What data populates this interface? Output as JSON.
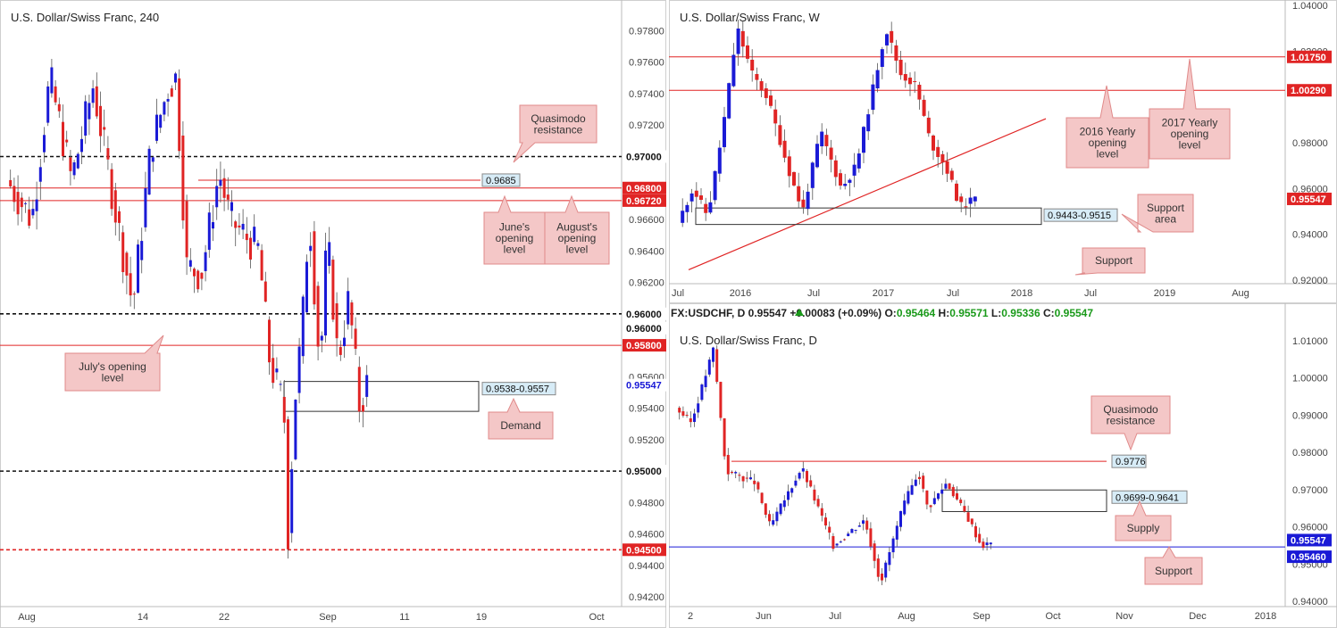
{
  "colors": {
    "up": "#1a1ad6",
    "down": "#e02424",
    "resistance": "#e02424",
    "support_blue": "#1a1ad6",
    "callout_bg": "#f4c7c7",
    "callout_border": "#e08a8a",
    "tag_bg": "#d7ecf7",
    "axis_text": "#444444"
  },
  "panels": [
    {
      "id": "left",
      "title": "U.S. Dollar/Swiss Franc, 240",
      "ylim": [
        0.4,
        0.9795
      ],
      "yticks": [
        "0.97800",
        "0.97600",
        "0.97400",
        "0.97200",
        "0.96600",
        "0.96400",
        "0.96200",
        "0.95600",
        "0.95400",
        "0.95200",
        "0.94800",
        "0.94600",
        "0.94400",
        "0.94200"
      ],
      "ytick_values": [
        0.978,
        0.976,
        0.974,
        0.972,
        0.966,
        0.964,
        0.962,
        0.956,
        0.954,
        0.952,
        0.948,
        0.946,
        0.944,
        0.942
      ],
      "xticks": [
        "Aug",
        "14",
        "22",
        "Sep",
        "11",
        "19",
        "Oct"
      ],
      "levels": [
        {
          "value": 0.97,
          "label": "0.97000",
          "style": "dash-black",
          "tag": "white"
        },
        {
          "value": 0.968,
          "label": "0.96800",
          "style": "solid-red",
          "tag": "red"
        },
        {
          "value": 0.9672,
          "label": "0.96720",
          "style": "solid-red",
          "tag": "red"
        },
        {
          "value": 0.96,
          "label": "0.96000",
          "style": "dash-black",
          "tag": "white"
        },
        {
          "value": 0.96,
          "label": "0.96000",
          "style": "none",
          "tag": "white"
        },
        {
          "value": 0.958,
          "label": "0.95800",
          "style": "solid-red",
          "tag": "red"
        },
        {
          "value": 0.95547,
          "label": "0.95547",
          "style": "none",
          "tag": "blue-text"
        },
        {
          "value": 0.95,
          "label": "0.95000",
          "style": "dash-black",
          "tag": "white"
        },
        {
          "value": 0.945,
          "label": "0.94500",
          "style": "dash-red",
          "tag": "red"
        }
      ],
      "zones": [
        {
          "label": "0.9538-0.9557",
          "top": 0.9557,
          "bottom": 0.9538
        }
      ],
      "short_lines": [
        {
          "label": "0.9685",
          "value": 0.9685
        }
      ],
      "callouts": [
        "Quasimodo resistance",
        "June's opening level",
        "August's opening level",
        "July's opening level",
        "Demand"
      ]
    },
    {
      "id": "weekly",
      "title": "U.S. Dollar/Swiss Franc, W",
      "yticks": [
        "1.04000",
        "1.02000",
        "0.98000",
        "0.96000",
        "0.94000",
        "0.92000"
      ],
      "ytick_values": [
        1.04,
        1.02,
        0.98,
        0.96,
        0.94,
        0.92
      ],
      "xticks": [
        "Jul",
        "2016",
        "Jul",
        "2017",
        "Jul",
        "2018",
        "Jul",
        "2019",
        "Aug"
      ],
      "levels": [
        {
          "value": 1.0175,
          "label": "1.01750",
          "style": "solid-red",
          "tag": "red"
        },
        {
          "value": 1.0029,
          "label": "1.00290",
          "style": "solid-red",
          "tag": "red"
        },
        {
          "value": 0.95547,
          "label": "0.95547",
          "style": "none",
          "tag": "red"
        }
      ],
      "zones": [
        {
          "label": "0.9443-0.9515",
          "top": 0.9515,
          "bottom": 0.9443
        }
      ],
      "callouts": [
        "2016 Yearly opening level",
        "2017 Yearly opening level",
        "Support area",
        "Support"
      ]
    },
    {
      "id": "daily",
      "title": "U.S. Dollar/Swiss Franc, D",
      "info": {
        "symbol": "FX:USDCHF, D",
        "price": "0.95547",
        "change": "+0.00083 (+0.09%)",
        "o_label": "O:",
        "o": "0.95464",
        "h_label": "H:",
        "h": "0.95571",
        "l_label": "L:",
        "l": "0.95336",
        "c_label": "C:",
        "c": "0.95547"
      },
      "yticks": [
        "1.01000",
        "1.00000",
        "0.99000",
        "0.98000",
        "0.97000",
        "0.96000",
        "0.95000",
        "0.94000"
      ],
      "ytick_values": [
        1.01,
        1.0,
        0.99,
        0.98,
        0.97,
        0.96,
        0.95,
        0.94
      ],
      "xticks": [
        "2",
        "Jun",
        "Jul",
        "Aug",
        "Sep",
        "Oct",
        "Nov",
        "Dec",
        "2018"
      ],
      "levels": [
        {
          "value": 0.9776,
          "label": "0.9776",
          "style": "solid-red",
          "tag": "none"
        },
        {
          "value": 0.95547,
          "label": "0.95547",
          "style": "none",
          "tag": "blue"
        },
        {
          "value": 0.9546,
          "label": "0.95460",
          "style": "solid-blue",
          "tag": "blue"
        }
      ],
      "zones": [
        {
          "label": "0.9699-0.9641",
          "top": 0.9699,
          "bottom": 0.9641
        }
      ],
      "callouts": [
        "Quasimodo resistance",
        "Supply",
        "Support"
      ]
    }
  ]
}
